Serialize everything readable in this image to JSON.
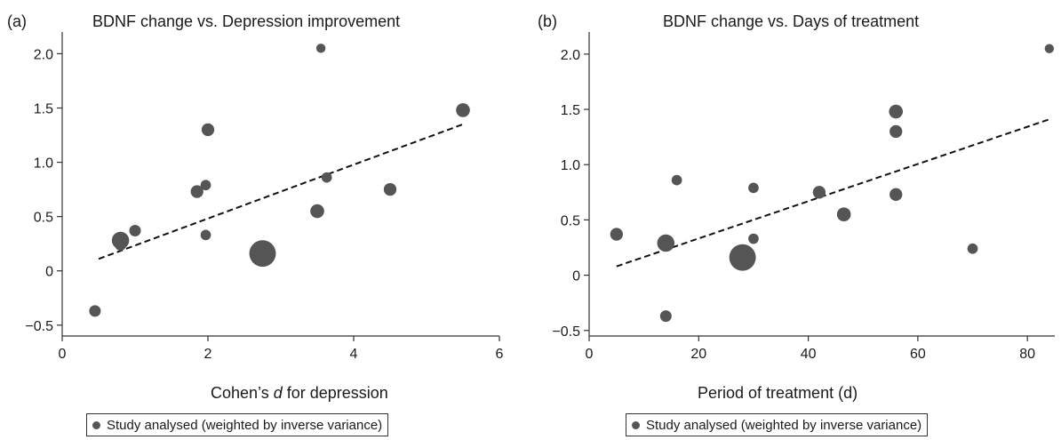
{
  "chart_data": [
    {
      "type": "scatter",
      "panel_label": "(a)",
      "title": "BDNF change vs. Depression improvement",
      "xlabel_pre": "Cohen’s ",
      "xlabel_italic": "d",
      "xlabel_post": " for depression",
      "ylabel": "",
      "xlim": [
        0,
        6
      ],
      "ylim": [
        -0.6,
        2.2
      ],
      "xticks": [
        0,
        2,
        4,
        6
      ],
      "yticks": [
        -0.5,
        0,
        0.5,
        1.0,
        1.5,
        2.0
      ],
      "ytick_labels": [
        "−0.5",
        "0",
        "0.5",
        "1.0",
        "1.5",
        "2.0"
      ],
      "points": [
        {
          "x": 0.45,
          "y": -0.37,
          "weight": 1.0
        },
        {
          "x": 0.8,
          "y": 0.28,
          "weight": 1.5
        },
        {
          "x": 0.8,
          "y": 0.24,
          "weight": 1.0
        },
        {
          "x": 1.0,
          "y": 0.37,
          "weight": 1.0
        },
        {
          "x": 1.85,
          "y": 0.73,
          "weight": 1.1
        },
        {
          "x": 1.97,
          "y": 0.79,
          "weight": 0.9
        },
        {
          "x": 2.0,
          "y": 1.3,
          "weight": 1.1
        },
        {
          "x": 1.97,
          "y": 0.33,
          "weight": 0.9
        },
        {
          "x": 2.75,
          "y": 0.16,
          "weight": 2.3
        },
        {
          "x": 3.5,
          "y": 0.55,
          "weight": 1.2
        },
        {
          "x": 3.55,
          "y": 2.05,
          "weight": 0.8
        },
        {
          "x": 3.63,
          "y": 0.86,
          "weight": 0.9
        },
        {
          "x": 4.5,
          "y": 0.75,
          "weight": 1.1
        },
        {
          "x": 5.5,
          "y": 1.48,
          "weight": 1.2
        }
      ],
      "trendline": {
        "x": [
          0.5,
          5.5
        ],
        "y": [
          0.11,
          1.35
        ],
        "style": "dashed"
      },
      "legend": {
        "label": "Study analysed (weighted by inverse variance)",
        "position": "bottom"
      }
    },
    {
      "type": "scatter",
      "panel_label": "(b)",
      "title": "BDNF change vs. Days of treatment",
      "xlabel_pre": "Period of treatment (d)",
      "xlabel_italic": "",
      "xlabel_post": "",
      "ylabel": "",
      "xlim": [
        0,
        85
      ],
      "ylim": [
        -0.55,
        2.2
      ],
      "xticks": [
        0,
        20,
        40,
        60,
        80
      ],
      "yticks": [
        -0.5,
        0,
        0.5,
        1.0,
        1.5,
        2.0
      ],
      "ytick_labels": [
        "−0.5",
        "0",
        "0.5",
        "1.0",
        "1.5",
        "2.0"
      ],
      "points": [
        {
          "x": 5,
          "y": 0.37,
          "weight": 1.1
        },
        {
          "x": 14,
          "y": 0.29,
          "weight": 1.5
        },
        {
          "x": 14,
          "y": -0.37,
          "weight": 1.0
        },
        {
          "x": 16,
          "y": 0.86,
          "weight": 0.9
        },
        {
          "x": 28,
          "y": 0.16,
          "weight": 2.3
        },
        {
          "x": 30,
          "y": 0.79,
          "weight": 0.9
        },
        {
          "x": 30,
          "y": 0.33,
          "weight": 0.9
        },
        {
          "x": 42,
          "y": 0.75,
          "weight": 1.1
        },
        {
          "x": 46.5,
          "y": 0.55,
          "weight": 1.2
        },
        {
          "x": 56,
          "y": 1.48,
          "weight": 1.2
        },
        {
          "x": 56,
          "y": 1.3,
          "weight": 1.1
        },
        {
          "x": 56,
          "y": 0.73,
          "weight": 1.1
        },
        {
          "x": 70,
          "y": 0.24,
          "weight": 0.9
        },
        {
          "x": 84,
          "y": 2.05,
          "weight": 0.8
        }
      ],
      "trendline": {
        "x": [
          5,
          84
        ],
        "y": [
          0.08,
          1.41
        ],
        "style": "dashed"
      },
      "legend": {
        "label": "Study analysed (weighted by inverse variance)",
        "position": "bottom"
      }
    }
  ],
  "colors": {
    "marker": "#555555",
    "axis": "#333333",
    "trendline": "#111111"
  }
}
